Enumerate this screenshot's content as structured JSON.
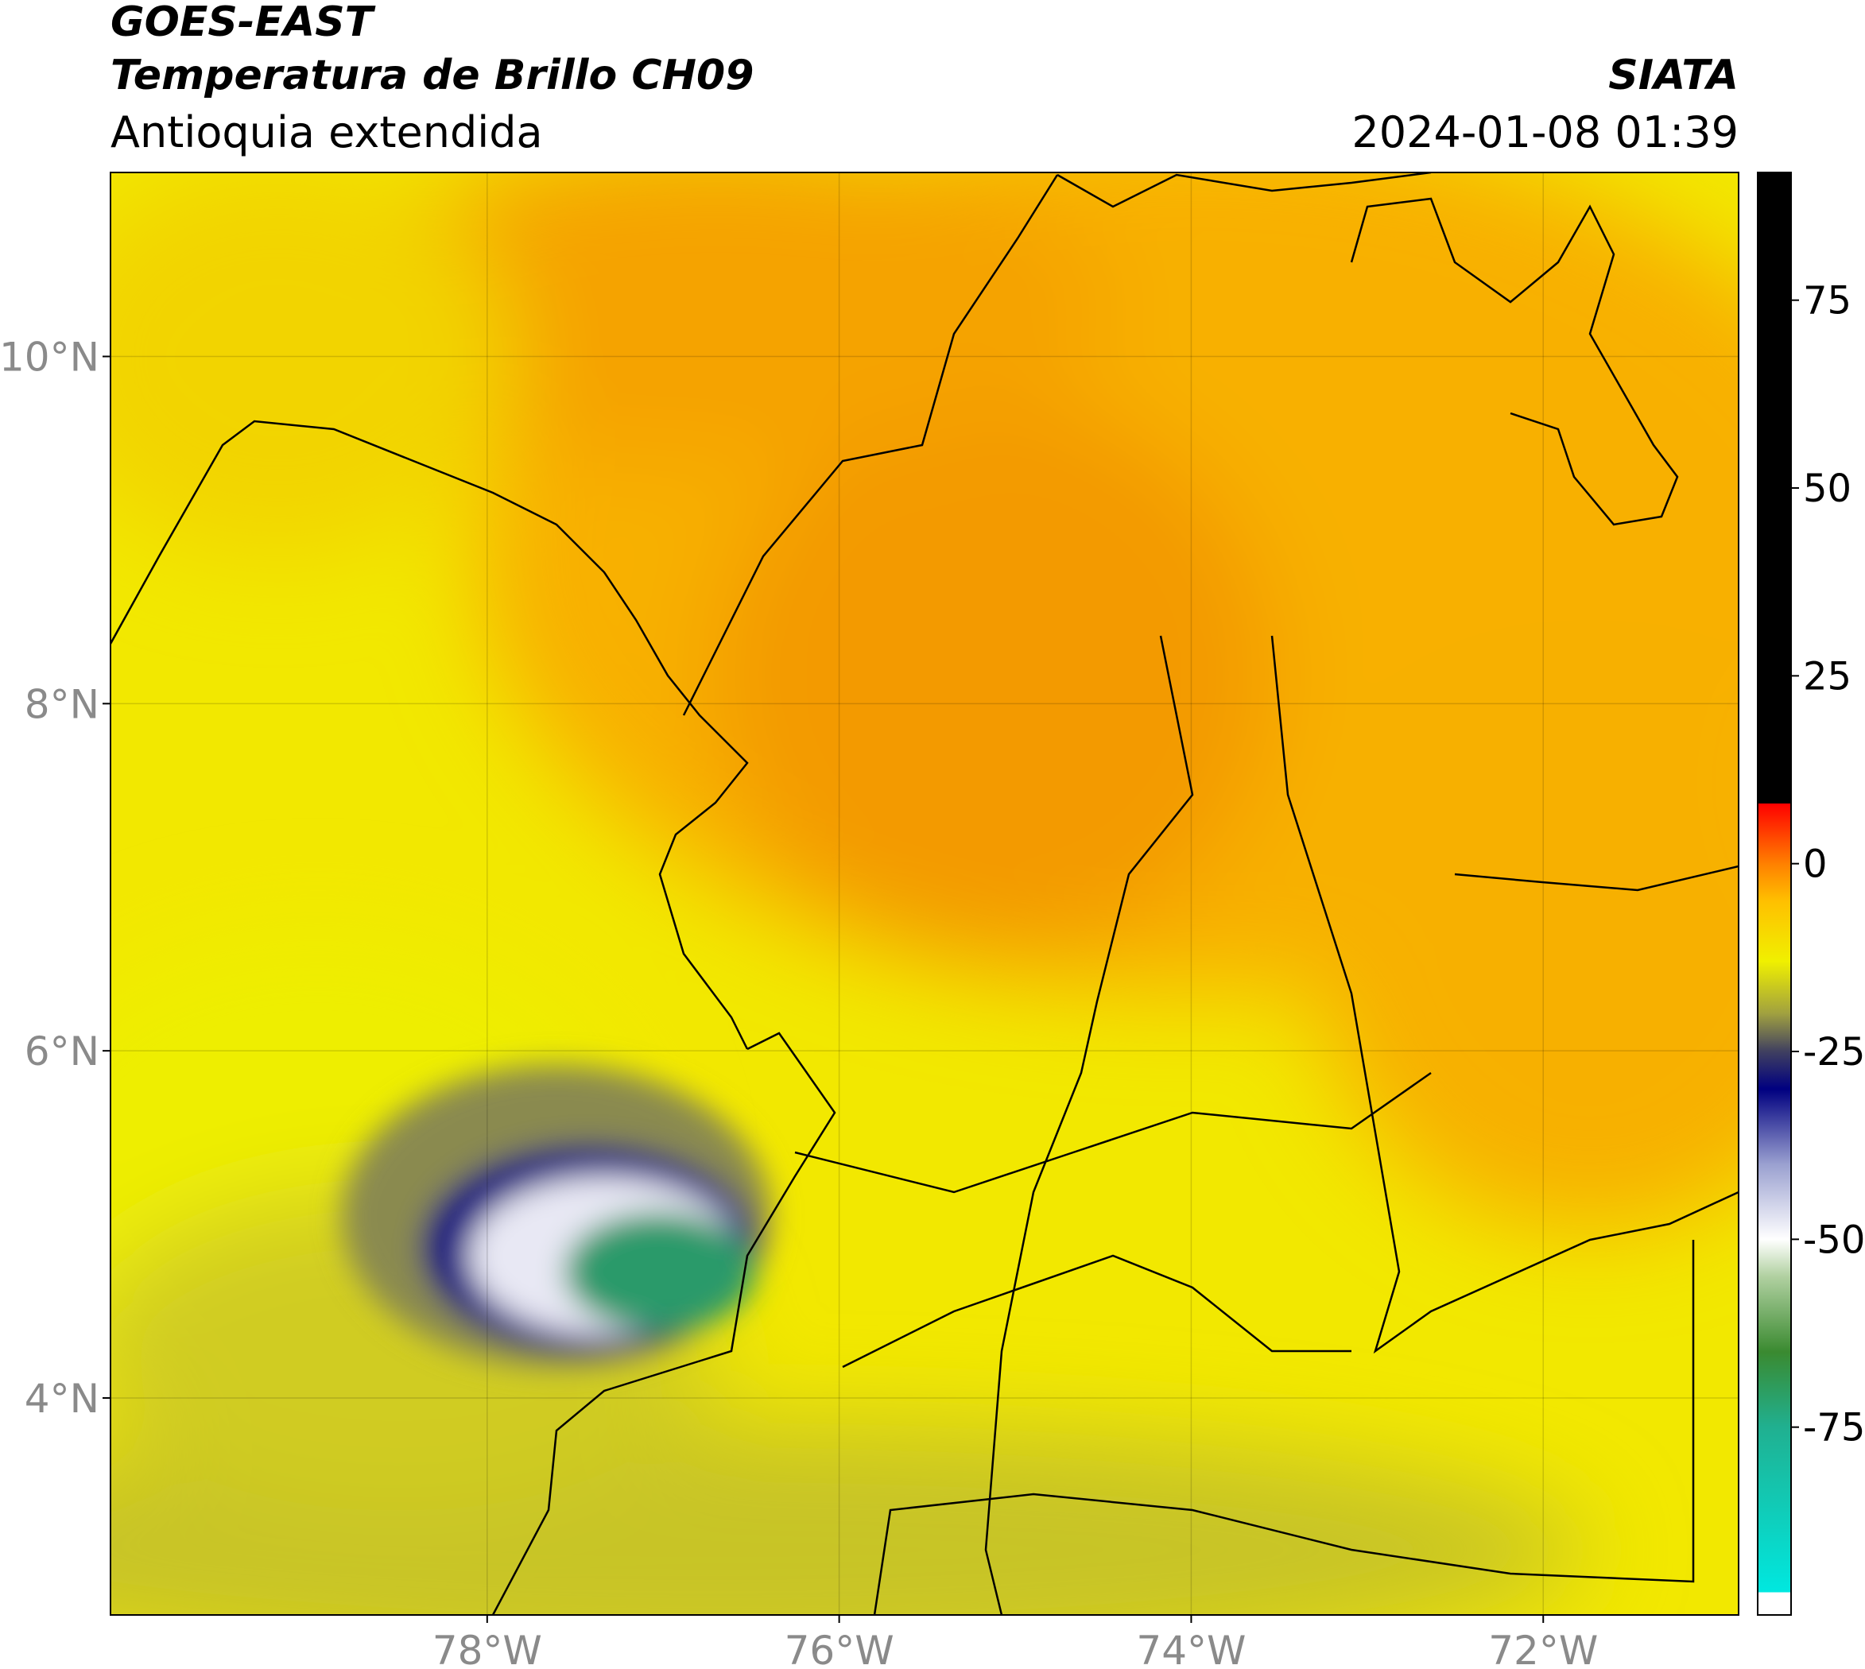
{
  "header": {
    "title": "GOES-EAST",
    "subtitle": "Temperatura de Brillo CH09",
    "region": "Antioquia extendida",
    "source": "SIATA",
    "datetime": "2024-01-08 01:39"
  },
  "map": {
    "xlim": [
      -80.14,
      -70.89
    ],
    "ylim": [
      2.75,
      11.06
    ],
    "xticks": [
      {
        "value": -78,
        "label": "78°W"
      },
      {
        "value": -76,
        "label": "76°W"
      },
      {
        "value": -74,
        "label": "74°W"
      },
      {
        "value": -72,
        "label": "72°W"
      }
    ],
    "yticks": [
      {
        "value": 4,
        "label": "4°N"
      },
      {
        "value": 6,
        "label": "6°N"
      },
      {
        "value": 8,
        "label": "8°N"
      },
      {
        "value": 10,
        "label": "10°N"
      }
    ],
    "grid": true
  },
  "colorbar": {
    "lim": [
      -100,
      92
    ],
    "ticks": [
      -75,
      -50,
      -25,
      0,
      25,
      50,
      75
    ],
    "colormap": [
      {
        "value": -100,
        "color": "#ffffff"
      },
      {
        "value": -97,
        "color": "#ffffff"
      },
      {
        "value": -97,
        "color": "#00e8e0"
      },
      {
        "value": -75,
        "color": "#20b090"
      },
      {
        "value": -65,
        "color": "#3a8a30"
      },
      {
        "value": -55,
        "color": "#b0d0a0"
      },
      {
        "value": -50,
        "color": "#ffffff"
      },
      {
        "value": -40,
        "color": "#9aa0d0"
      },
      {
        "value": -30,
        "color": "#000080"
      },
      {
        "value": -25,
        "color": "#404060"
      },
      {
        "value": -20,
        "color": "#a0a040"
      },
      {
        "value": -13,
        "color": "#f0f000"
      },
      {
        "value": -5,
        "color": "#ffc000"
      },
      {
        "value": 0,
        "color": "#ff8000"
      },
      {
        "value": 8,
        "color": "#ff0000"
      },
      {
        "value": 8,
        "color": "#000000"
      },
      {
        "value": 92,
        "color": "#000000"
      }
    ]
  }
}
